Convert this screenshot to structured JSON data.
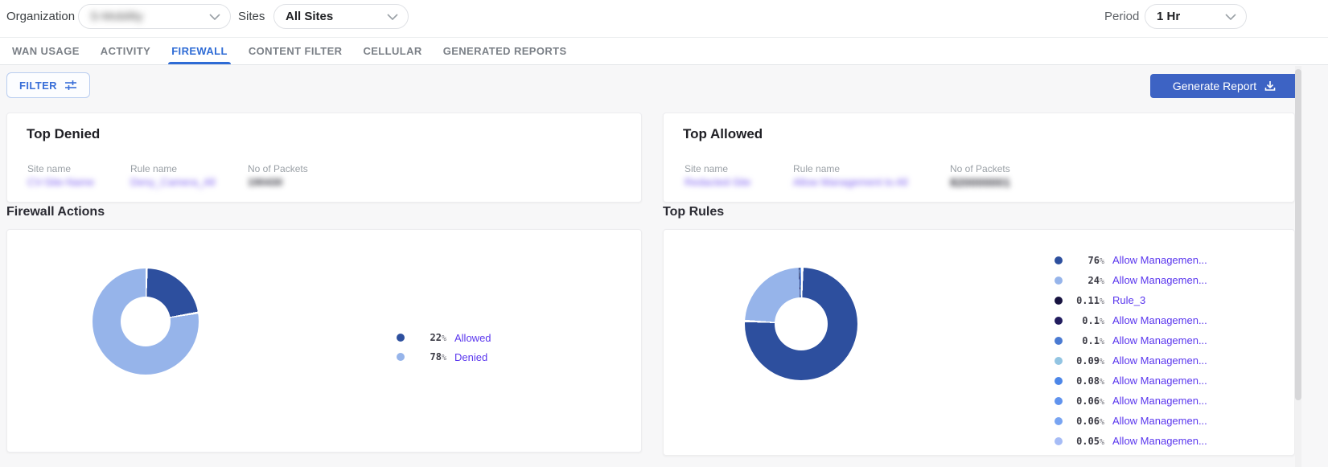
{
  "header": {
    "organization_label": "Organization",
    "organization_value": "S-Mobility",
    "organization_redacted": true,
    "sites_label": "Sites",
    "sites_value": "All Sites",
    "period_label": "Period",
    "period_value": "1 Hr"
  },
  "tabs": {
    "items": [
      "WAN USAGE",
      "ACTIVITY",
      "FIREWALL",
      "CONTENT FILTER",
      "CELLULAR",
      "GENERATED REPORTS"
    ],
    "active": "FIREWALL"
  },
  "toolbar": {
    "filter_label": "FILTER",
    "generate_report_label": "Generate Report"
  },
  "top_denied": {
    "title": "Top Denied",
    "columns": {
      "site": "Site name",
      "rule": "Rule name",
      "packets": "No of Packets"
    },
    "row": {
      "site_name": "CV-Site-Name",
      "rule_name": "Deny_Camera_All",
      "packets": "190430",
      "redacted": true
    }
  },
  "top_allowed": {
    "title": "Top Allowed",
    "columns": {
      "site": "Site name",
      "rule": "Rule name",
      "packets": "No of Packets"
    },
    "row": {
      "site_name": "Redacted-Site",
      "rule_name": "Allow Management to All",
      "packets": "820000001",
      "redacted": true
    }
  },
  "sections": {
    "left_title": "Firewall Actions",
    "right_title": "Top Rules"
  },
  "chart_data": [
    {
      "type": "pie",
      "donut": true,
      "title": "Firewall Actions",
      "legend_position": "right",
      "slices": [
        {
          "label": "Allowed",
          "pct_label": "22%",
          "value": 22,
          "color": "#2d4f9e"
        },
        {
          "label": "Denied",
          "pct_label": "78%",
          "value": 78,
          "color": "#96b4ea"
        }
      ]
    },
    {
      "type": "pie",
      "donut": true,
      "title": "Top Rules",
      "legend_position": "right",
      "slices": [
        {
          "label": "Allow Managemen...",
          "pct_label": "76%",
          "value": 76,
          "color": "#2d4f9e"
        },
        {
          "label": "Allow Managemen...",
          "pct_label": "24%",
          "value": 24,
          "color": "#96b4ea"
        },
        {
          "label": "Rule_3",
          "pct_label": "0.11%",
          "value": 0.11,
          "color": "#16123f"
        },
        {
          "label": "Allow Managemen...",
          "pct_label": "0.1%",
          "value": 0.1,
          "color": "#211c5e"
        },
        {
          "label": "Allow Managemen...",
          "pct_label": "0.1%",
          "value": 0.1,
          "color": "#4a7ad2"
        },
        {
          "label": "Allow Managemen...",
          "pct_label": "0.09%",
          "value": 0.09,
          "color": "#92c4e2"
        },
        {
          "label": "Allow Managemen...",
          "pct_label": "0.08%",
          "value": 0.08,
          "color": "#4c86e8"
        },
        {
          "label": "Allow Managemen...",
          "pct_label": "0.06%",
          "value": 0.06,
          "color": "#6093ee"
        },
        {
          "label": "Allow Managemen...",
          "pct_label": "0.06%",
          "value": 0.06,
          "color": "#78a4f2"
        },
        {
          "label": "Allow Managemen...",
          "pct_label": "0.05%",
          "value": 0.05,
          "color": "#a6bcf6"
        }
      ]
    }
  ],
  "colors": {
    "accent": "#2e6bd5",
    "button": "#3d63c4",
    "link": "#5a36ee",
    "donut_dark": "#2d4f9e",
    "donut_light": "#96b4ea"
  }
}
